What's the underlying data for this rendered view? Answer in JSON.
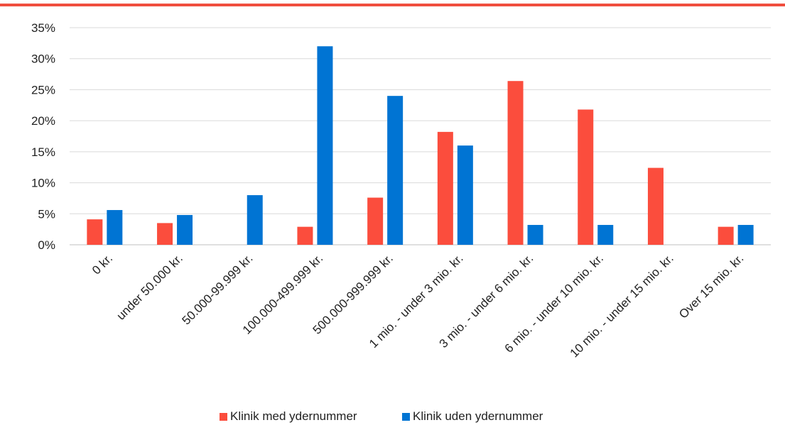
{
  "chart_data": {
    "type": "bar",
    "categories": [
      "0 kr.",
      "under 50.000 kr.",
      "50.000-99.999 kr.",
      "100.000-499.999 kr.",
      "500.000-999.999 kr.",
      "1 mio. - under 3 mio. kr.",
      "3 mio. - under 6 mio. kr.",
      "6 mio. - under 10 mio. kr.",
      "10 mio. - under 15 mio. kr.",
      "Over 15 mio. kr."
    ],
    "series": [
      {
        "name": "Klinik med ydernummer",
        "color": "#fb4d3d",
        "values": [
          4.1,
          3.5,
          0,
          2.9,
          7.6,
          18.2,
          26.4,
          21.8,
          12.4,
          2.9
        ]
      },
      {
        "name": "Klinik uden ydernummer",
        "color": "#0074d3",
        "values": [
          5.6,
          4.8,
          8.0,
          32.0,
          24.0,
          16.0,
          3.2,
          3.2,
          0,
          3.2
        ]
      }
    ],
    "y_ticks": [
      "0%",
      "5%",
      "10%",
      "15%",
      "20%",
      "25%",
      "30%",
      "35%"
    ],
    "ylim": [
      0,
      35
    ],
    "grid": true,
    "legend_position": "bottom",
    "accent_color": "#f04e3e"
  }
}
